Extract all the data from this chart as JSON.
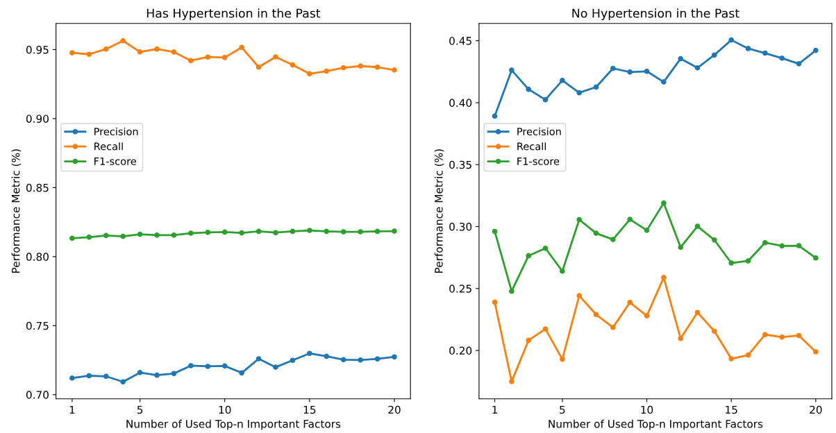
{
  "chart_data": [
    {
      "type": "line",
      "title": "Has Hypertension in the Past",
      "xlabel": "Number of Used Top-n Important Factors",
      "ylabel": "Performance Metric (%)",
      "x": [
        1,
        2,
        3,
        4,
        5,
        6,
        7,
        8,
        9,
        10,
        11,
        12,
        13,
        14,
        15,
        16,
        17,
        18,
        19,
        20
      ],
      "xlim": [
        0.05,
        20.95
      ],
      "xticks": [
        1,
        5,
        10,
        15,
        20
      ],
      "ylim": [
        0.697,
        0.969
      ],
      "yticks": [
        {
          "value": 0.7,
          "label": "0.70"
        },
        0.75,
        {
          "value": 0.8,
          "label": "0.80"
        },
        0.85,
        {
          "value": 0.9,
          "label": "0.90"
        },
        0.95
      ],
      "marker": "circle",
      "legend": "left",
      "grid": false,
      "series": [
        {
          "name": "Precision",
          "color": "#1f77b4",
          "values": [
            0.712,
            0.7137,
            0.7133,
            0.7093,
            0.716,
            0.7141,
            0.7153,
            0.721,
            0.7205,
            0.7208,
            0.7158,
            0.726,
            0.7199,
            0.7249,
            0.7299,
            0.7278,
            0.7253,
            0.7251,
            0.7259,
            0.7274
          ]
        },
        {
          "name": "Recall",
          "color": "#ff7f0e",
          "values": [
            0.9477,
            0.9466,
            0.9504,
            0.9564,
            0.9483,
            0.9504,
            0.9483,
            0.942,
            0.9446,
            0.9443,
            0.9516,
            0.9373,
            0.9447,
            0.9389,
            0.9325,
            0.9344,
            0.9369,
            0.9381,
            0.9373,
            0.9352
          ]
        },
        {
          "name": "F1-score",
          "color": "#2ca02c",
          "values": [
            0.8133,
            0.8141,
            0.8153,
            0.8147,
            0.8162,
            0.8156,
            0.8156,
            0.817,
            0.8176,
            0.8178,
            0.8172,
            0.8183,
            0.8174,
            0.8183,
            0.819,
            0.8183,
            0.818,
            0.818,
            0.8183,
            0.8185
          ]
        }
      ]
    },
    {
      "type": "line",
      "title": "No Hypertension in the Past",
      "xlabel": "Number of Used Top-n Important Factors",
      "ylabel": "Performance Metric (%)",
      "x": [
        1,
        2,
        3,
        4,
        5,
        6,
        7,
        8,
        9,
        10,
        11,
        12,
        13,
        14,
        15,
        16,
        17,
        18,
        19,
        20
      ],
      "xlim": [
        0.07,
        20.95
      ],
      "xticks": [
        1,
        5,
        10,
        15,
        20
      ],
      "ylim": [
        0.161,
        0.464
      ],
      "yticks": [
        {
          "value": 0.2,
          "label": "0.20"
        },
        0.25,
        {
          "value": 0.3,
          "label": "0.30"
        },
        0.35,
        {
          "value": 0.4,
          "label": "0.40"
        },
        0.45
      ],
      "marker": "circle",
      "legend": "left",
      "grid": false,
      "series": [
        {
          "name": "Precision",
          "color": "#1f77b4",
          "values": [
            0.3892,
            0.4262,
            0.4108,
            0.4024,
            0.418,
            0.408,
            0.4126,
            0.4277,
            0.4247,
            0.4253,
            0.4167,
            0.4355,
            0.4281,
            0.4385,
            0.4506,
            0.4437,
            0.44,
            0.4359,
            0.4314,
            0.4422
          ]
        },
        {
          "name": "Recall",
          "color": "#ff7f0e",
          "values": [
            0.239,
            0.1749,
            0.2082,
            0.2173,
            0.1929,
            0.2442,
            0.229,
            0.2186,
            0.2388,
            0.228,
            0.2589,
            0.2097,
            0.2307,
            0.2156,
            0.1933,
            0.1963,
            0.2128,
            0.2108,
            0.2121,
            0.1989
          ]
        },
        {
          "name": "F1-score",
          "color": "#2ca02c",
          "values": [
            0.2961,
            0.2478,
            0.2764,
            0.2825,
            0.264,
            0.3056,
            0.2946,
            0.2896,
            0.3058,
            0.297,
            0.319,
            0.2833,
            0.3002,
            0.2892,
            0.2706,
            0.2723,
            0.287,
            0.2844,
            0.2846,
            0.2747
          ]
        }
      ]
    }
  ]
}
